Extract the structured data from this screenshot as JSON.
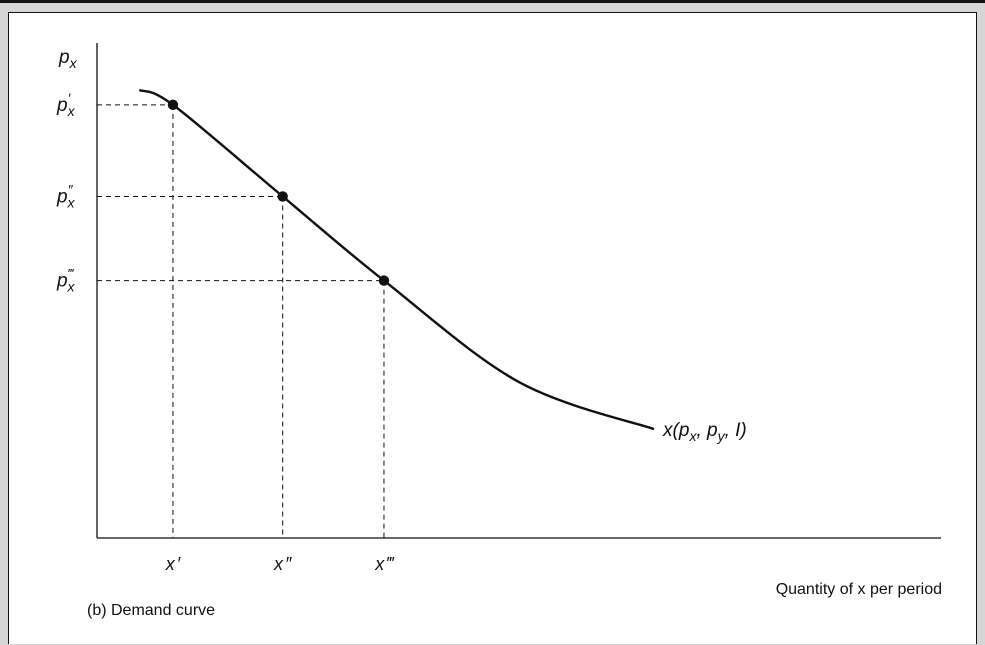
{
  "chart_data": {
    "type": "line",
    "caption": "(b) Demand curve",
    "xlabel": "Quantity of x per period",
    "ylabel": {
      "base": "p",
      "sub": "x"
    },
    "xlim": [
      0,
      10
    ],
    "ylim": [
      0,
      10
    ],
    "series": [
      {
        "label": {
          "prefix": "x(",
          "p": "p",
          "p_sub": "x",
          "sep1": ", ",
          "pbar": "p",
          "pbar_sub": "y",
          "sep2": ", ",
          "ibar": "I",
          "suffix": ")"
        },
        "color": "#111111",
        "x": [
          0.5,
          0.9,
          2.2,
          3.4,
          5.0,
          6.6
        ],
        "y": [
          9.05,
          8.75,
          6.9,
          5.2,
          3.15,
          2.2
        ]
      }
    ],
    "points": [
      {
        "x": 0.9,
        "y": 8.75,
        "xlabel": {
          "base": "x",
          "primes": "′"
        },
        "ylabel": {
          "base": "p",
          "sub": "x",
          "primes": "′"
        }
      },
      {
        "x": 2.2,
        "y": 6.9,
        "xlabel": {
          "base": "x",
          "primes": "″"
        },
        "ylabel": {
          "base": "p",
          "sub": "x",
          "primes": "″"
        }
      },
      {
        "x": 3.4,
        "y": 5.2,
        "xlabel": {
          "base": "x",
          "primes": "‴"
        },
        "ylabel": {
          "base": "p",
          "sub": "x",
          "primes": "‴"
        }
      }
    ],
    "grid": false,
    "dashed_guides": true
  }
}
